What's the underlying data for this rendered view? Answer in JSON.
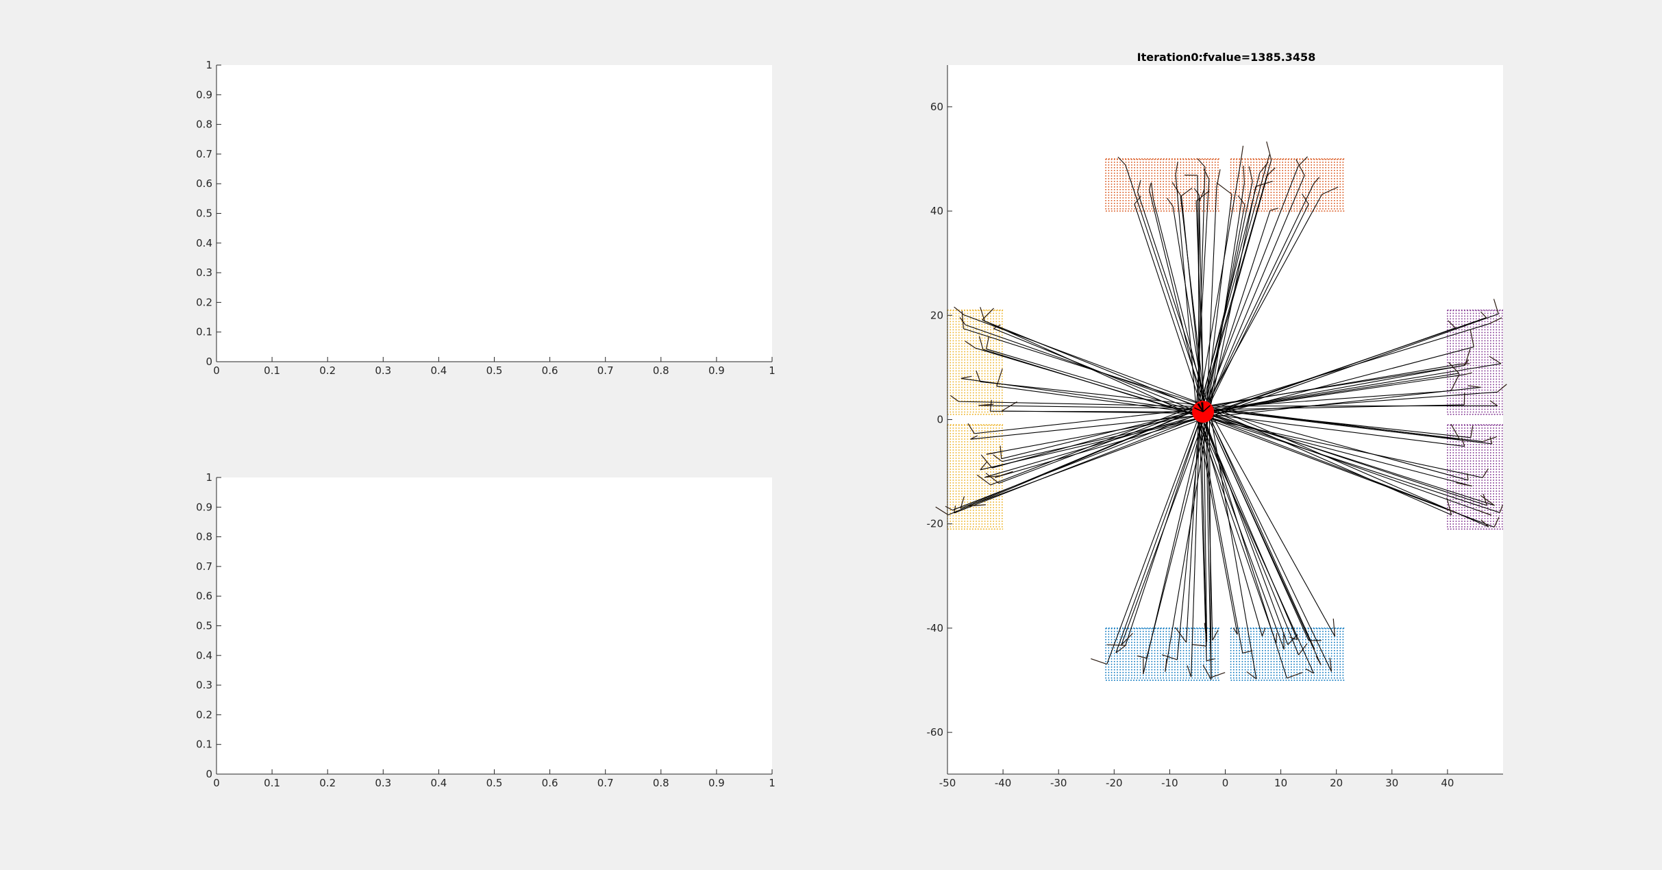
{
  "chart_data": [
    {
      "type": "line",
      "title": "",
      "xlabel": "",
      "ylabel": "",
      "xlim": [
        0,
        1
      ],
      "ylim": [
        0,
        1
      ],
      "xticks": [
        "0",
        "0.1",
        "0.2",
        "0.3",
        "0.4",
        "0.5",
        "0.6",
        "0.7",
        "0.8",
        "0.9",
        "1"
      ],
      "yticks": [
        "0",
        "0.1",
        "0.2",
        "0.3",
        "0.4",
        "0.5",
        "0.6",
        "0.7",
        "0.8",
        "0.9",
        "1"
      ],
      "series": [],
      "grid": false
    },
    {
      "type": "line",
      "title": "",
      "xlabel": "",
      "ylabel": "",
      "xlim": [
        0,
        1
      ],
      "ylim": [
        0,
        1
      ],
      "xticks": [
        "0",
        "0.1",
        "0.2",
        "0.3",
        "0.4",
        "0.5",
        "0.6",
        "0.7",
        "0.8",
        "0.9",
        "1"
      ],
      "yticks": [
        "0",
        "0.1",
        "0.2",
        "0.3",
        "0.4",
        "0.5",
        "0.6",
        "0.7",
        "0.8",
        "0.9",
        "1"
      ],
      "series": [],
      "grid": false
    },
    {
      "type": "scatter",
      "title": "Iteration0:fvalue=1385.3458",
      "xlabel": "",
      "ylabel": "",
      "xlim": [
        -50,
        50
      ],
      "ylim": [
        -68,
        68
      ],
      "xticks": [
        -50,
        -40,
        -30,
        -20,
        -10,
        0,
        10,
        20,
        30,
        40
      ],
      "yticks": [
        -60,
        -40,
        -20,
        0,
        20,
        40,
        60
      ],
      "xtick_labels": [
        "-50",
        "-40",
        "-30",
        "-20",
        "-10",
        "0",
        "10",
        "20",
        "30",
        "40"
      ],
      "ytick_labels": [
        "-60",
        "-40",
        "-20",
        "0",
        "20",
        "40",
        "60"
      ],
      "grid": false,
      "center": {
        "x": -4,
        "y": 1.5,
        "color": "#ff0000"
      },
      "regions": [
        {
          "color": "#d95319",
          "x": [
            -21.5,
            -1
          ],
          "y": [
            40,
            50
          ]
        },
        {
          "color": "#d95319",
          "x": [
            1,
            21.5
          ],
          "y": [
            40,
            50
          ]
        },
        {
          "color": "#edb120",
          "x": [
            -50,
            -40
          ],
          "y": [
            1,
            21
          ]
        },
        {
          "color": "#edb120",
          "x": [
            -50,
            -40
          ],
          "y": [
            -21,
            -1
          ]
        },
        {
          "color": "#7e2f8e",
          "x": [
            40,
            50
          ],
          "y": [
            1,
            21
          ]
        },
        {
          "color": "#7e2f8e",
          "x": [
            40,
            50
          ],
          "y": [
            -21,
            -1
          ]
        },
        {
          "color": "#0072bd",
          "x": [
            -21.5,
            -1
          ],
          "y": [
            -50,
            -40
          ]
        },
        {
          "color": "#0072bd",
          "x": [
            1,
            21.5
          ],
          "y": [
            -50,
            -40
          ]
        }
      ],
      "line_color": "#000000"
    }
  ]
}
